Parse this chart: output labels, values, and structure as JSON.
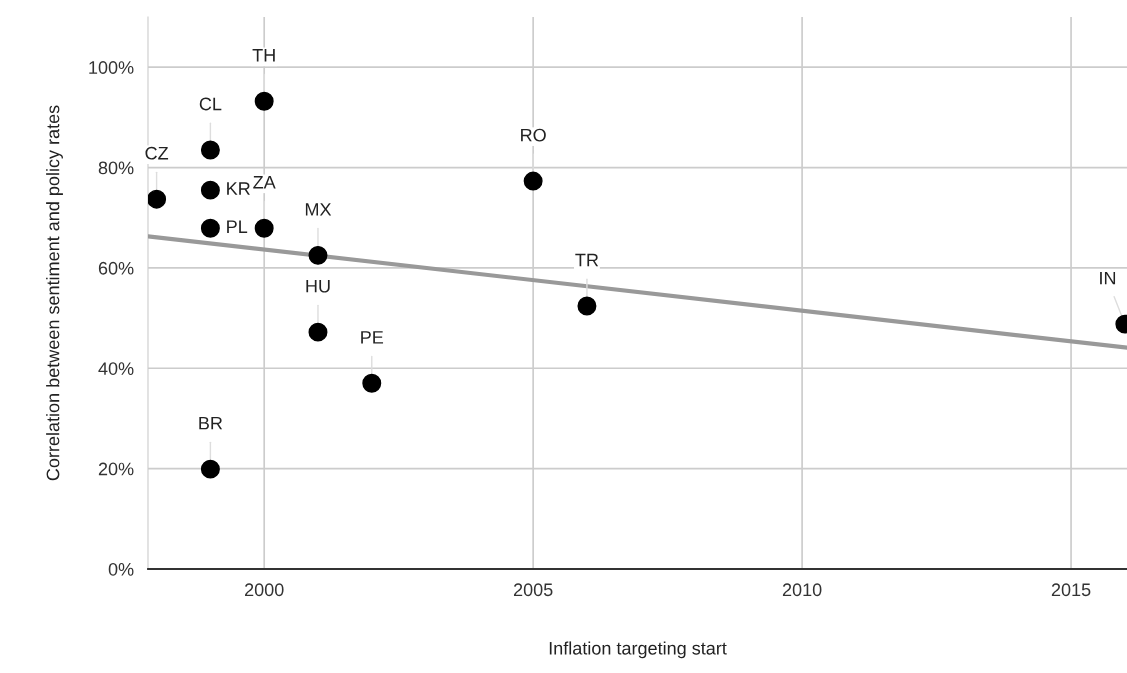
{
  "chart_data": {
    "type": "scatter",
    "xlabel": "Inflation targeting start",
    "ylabel": "Correlation between sentiment and policy rates",
    "xlim": [
      1997.84,
      2016.04
    ],
    "xticks": [
      2000,
      2005,
      2010,
      2015
    ],
    "ylim": [
      0,
      110
    ],
    "yticks": [
      {
        "value": 0,
        "label": "0%"
      },
      {
        "value": 20,
        "label": "20%"
      },
      {
        "value": 40,
        "label": "40%"
      },
      {
        "value": 60,
        "label": "60%"
      },
      {
        "value": 80,
        "label": "80%"
      },
      {
        "value": 100,
        "label": "100%"
      }
    ],
    "grid": true,
    "legend": false,
    "series": [
      {
        "marker": "circle",
        "color": "#000000",
        "x": [
          1998,
          1999,
          1999,
          1999,
          1999,
          2000,
          2000,
          2001,
          2001,
          2002,
          2005,
          2006,
          2016
        ],
        "values": [
          73.7,
          83.5,
          75.5,
          67.9,
          19.9,
          93.2,
          67.9,
          62.5,
          47.2,
          37.0,
          77.3,
          52.4,
          48.8
        ]
      },
      {
        "type": "line",
        "marker": "none",
        "color": "#999999",
        "x": [
          1997.84,
          2016.04
        ],
        "values": [
          66.3,
          44.1
        ]
      }
    ],
    "annotations": [
      {
        "text": "CZ",
        "x": 1998,
        "y": 73.7
      },
      {
        "text": "CL",
        "x": 1999,
        "y": 83.5
      },
      {
        "text": "KR",
        "x": 1999,
        "y": 75.5
      },
      {
        "text": "PL",
        "x": 1999,
        "y": 67.9
      },
      {
        "text": "BR",
        "x": 1999,
        "y": 19.9
      },
      {
        "text": "TH",
        "x": 2000,
        "y": 93.2
      },
      {
        "text": "ZA",
        "x": 2000,
        "y": 67.9
      },
      {
        "text": "MX",
        "x": 2001,
        "y": 62.5
      },
      {
        "text": "HU",
        "x": 2001,
        "y": 47.2
      },
      {
        "text": "PE",
        "x": 2002,
        "y": 37.0
      },
      {
        "text": "RO",
        "x": 2005,
        "y": 77.3
      },
      {
        "text": "TR",
        "x": 2006,
        "y": 52.4
      },
      {
        "text": "IN",
        "x": 2016,
        "y": 48.8
      }
    ]
  }
}
